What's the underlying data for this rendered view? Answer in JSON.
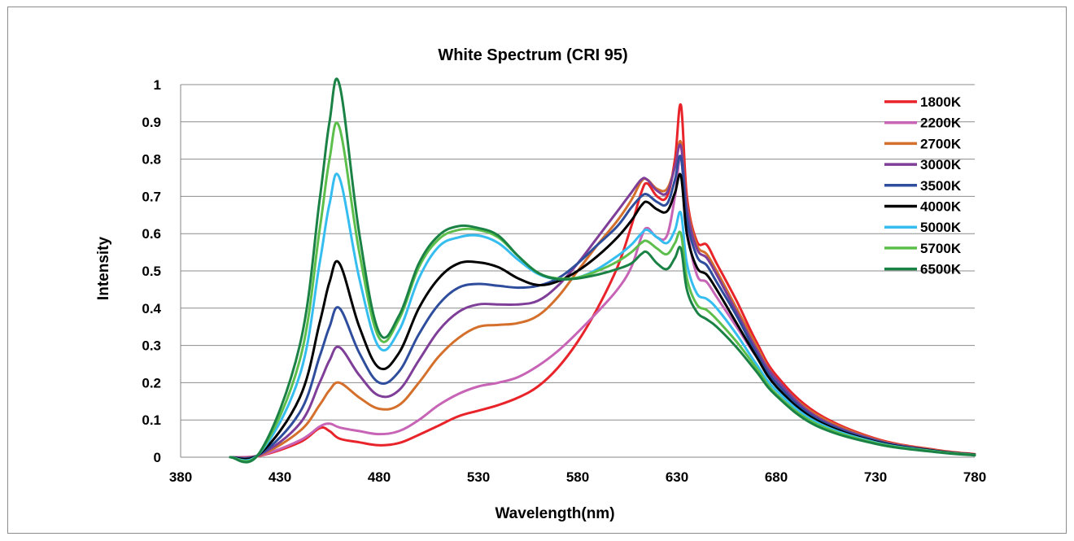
{
  "chart_data": {
    "type": "line",
    "title": "White Spectrum (CRI 95)",
    "xlabel": "Wavelength(nm)",
    "ylabel": "Intensity",
    "xlim": [
      380,
      780
    ],
    "ylim": [
      0,
      1
    ],
    "x_ticks": [
      "380",
      "430",
      "480",
      "530",
      "580",
      "630",
      "680",
      "730",
      "780"
    ],
    "y_ticks": [
      "0",
      "0.1",
      "0.2",
      "0.3",
      "0.4",
      "0.5",
      "0.6",
      "0.7",
      "0.8",
      "0.9",
      "1"
    ],
    "grid": "horizontal",
    "legend": "right",
    "x": [
      405,
      420,
      440,
      450,
      455,
      460,
      470,
      480,
      490,
      500,
      510,
      520,
      530,
      540,
      550,
      560,
      570,
      580,
      590,
      600,
      607,
      612,
      615,
      620,
      625,
      629,
      632,
      635,
      640,
      645,
      650,
      660,
      670,
      680,
      700,
      730,
      760,
      780
    ],
    "series": [
      {
        "name": "1800K",
        "color": "#e8232a",
        "values": [
          0,
          0.004,
          0.04,
          0.078,
          0.07,
          0.05,
          0.04,
          0.032,
          0.038,
          0.06,
          0.085,
          0.11,
          0.125,
          0.14,
          0.16,
          0.19,
          0.24,
          0.31,
          0.4,
          0.51,
          0.62,
          0.71,
          0.735,
          0.7,
          0.7,
          0.8,
          0.945,
          0.7,
          0.58,
          0.57,
          0.52,
          0.42,
          0.31,
          0.22,
          0.12,
          0.05,
          0.02,
          0.008
        ]
      },
      {
        "name": "2200K",
        "color": "#c764b6",
        "values": [
          0,
          0.005,
          0.045,
          0.082,
          0.09,
          0.08,
          0.07,
          0.062,
          0.07,
          0.1,
          0.14,
          0.17,
          0.19,
          0.2,
          0.215,
          0.245,
          0.285,
          0.335,
          0.39,
          0.45,
          0.51,
          0.59,
          0.615,
          0.59,
          0.595,
          0.7,
          0.805,
          0.62,
          0.49,
          0.47,
          0.43,
          0.35,
          0.27,
          0.2,
          0.11,
          0.045,
          0.018,
          0.007
        ]
      },
      {
        "name": "2700K",
        "color": "#d4702c",
        "values": [
          0,
          0.006,
          0.07,
          0.14,
          0.18,
          0.2,
          0.16,
          0.13,
          0.14,
          0.2,
          0.27,
          0.32,
          0.35,
          0.355,
          0.36,
          0.38,
          0.43,
          0.5,
          0.57,
          0.635,
          0.69,
          0.74,
          0.745,
          0.72,
          0.72,
          0.78,
          0.845,
          0.68,
          0.57,
          0.545,
          0.5,
          0.4,
          0.3,
          0.21,
          0.115,
          0.048,
          0.019,
          0.007
        ]
      },
      {
        "name": "3000K",
        "color": "#7f3f98",
        "values": [
          0,
          0.007,
          0.09,
          0.2,
          0.26,
          0.295,
          0.22,
          0.165,
          0.18,
          0.26,
          0.34,
          0.39,
          0.41,
          0.41,
          0.41,
          0.42,
          0.46,
          0.52,
          0.59,
          0.66,
          0.71,
          0.745,
          0.745,
          0.715,
          0.71,
          0.78,
          0.835,
          0.67,
          0.56,
          0.535,
          0.49,
          0.39,
          0.29,
          0.21,
          0.11,
          0.046,
          0.018,
          0.007
        ]
      },
      {
        "name": "3500K",
        "color": "#2e4d9c",
        "values": [
          0,
          0.008,
          0.12,
          0.27,
          0.35,
          0.4,
          0.28,
          0.2,
          0.23,
          0.33,
          0.41,
          0.455,
          0.465,
          0.46,
          0.455,
          0.46,
          0.48,
          0.52,
          0.57,
          0.62,
          0.67,
          0.7,
          0.705,
          0.685,
          0.68,
          0.745,
          0.805,
          0.64,
          0.54,
          0.515,
          0.47,
          0.38,
          0.28,
          0.2,
          0.105,
          0.044,
          0.017,
          0.007
        ]
      },
      {
        "name": "4000K",
        "color": "#000000",
        "values": [
          0,
          0.01,
          0.16,
          0.36,
          0.47,
          0.52,
          0.35,
          0.24,
          0.28,
          0.4,
          0.48,
          0.52,
          0.523,
          0.51,
          0.48,
          0.462,
          0.472,
          0.5,
          0.54,
          0.59,
          0.635,
          0.675,
          0.685,
          0.665,
          0.66,
          0.71,
          0.755,
          0.6,
          0.51,
          0.49,
          0.45,
          0.36,
          0.27,
          0.19,
          0.1,
          0.042,
          0.017,
          0.007
        ]
      },
      {
        "name": "5000K",
        "color": "#36bdf0",
        "values": [
          0,
          0.012,
          0.22,
          0.52,
          0.68,
          0.75,
          0.48,
          0.295,
          0.34,
          0.48,
          0.565,
          0.59,
          0.595,
          0.575,
          0.53,
          0.492,
          0.478,
          0.482,
          0.505,
          0.54,
          0.57,
          0.6,
          0.61,
          0.59,
          0.575,
          0.61,
          0.655,
          0.52,
          0.44,
          0.425,
          0.4,
          0.33,
          0.25,
          0.18,
          0.095,
          0.04,
          0.016,
          0.006
        ]
      },
      {
        "name": "5700K",
        "color": "#5cbf4c",
        "values": [
          0,
          0.013,
          0.26,
          0.61,
          0.8,
          0.885,
          0.55,
          0.32,
          0.37,
          0.51,
          0.585,
          0.61,
          0.61,
          0.59,
          0.54,
          0.495,
          0.48,
          0.482,
          0.5,
          0.525,
          0.55,
          0.575,
          0.58,
          0.56,
          0.545,
          0.575,
          0.6,
          0.48,
          0.41,
          0.395,
          0.37,
          0.31,
          0.24,
          0.17,
          0.09,
          0.038,
          0.015,
          0.006
        ]
      },
      {
        "name": "6500K",
        "color": "#1a8245",
        "values": [
          0,
          0.014,
          0.3,
          0.69,
          0.9,
          1.0,
          0.6,
          0.335,
          0.38,
          0.52,
          0.595,
          0.62,
          0.615,
          0.595,
          0.54,
          0.495,
          0.478,
          0.48,
          0.49,
          0.505,
          0.52,
          0.545,
          0.55,
          0.52,
          0.505,
          0.535,
          0.56,
          0.45,
          0.39,
          0.37,
          0.35,
          0.295,
          0.23,
          0.165,
          0.085,
          0.036,
          0.014,
          0.005
        ]
      }
    ]
  }
}
